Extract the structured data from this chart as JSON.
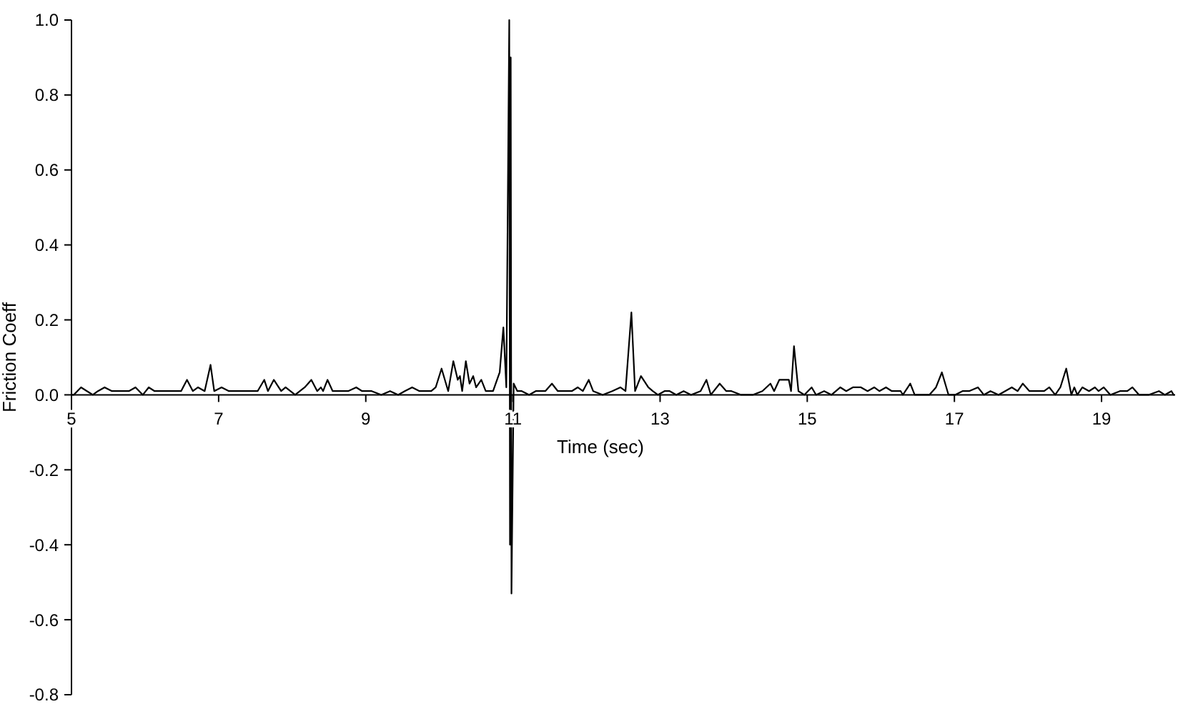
{
  "chart_data": {
    "type": "line",
    "xlabel": "Time (sec)",
    "ylabel": "Friction Coeff",
    "xlim": [
      5,
      20
    ],
    "xticks": [
      5,
      7,
      9,
      11,
      13,
      15,
      17,
      19
    ],
    "ylim": [
      -0.8,
      1.0
    ],
    "yticks": [
      {
        "value": 1,
        "label": "1.0"
      },
      0.8,
      0.6,
      0.4,
      0.2,
      {
        "value": 0,
        "label": "0.0"
      },
      -0.2,
      -0.4,
      -0.6,
      -0.8
    ],
    "x": [
      5.0,
      5.03,
      5.13,
      5.21,
      5.29,
      5.36,
      5.45,
      5.55,
      5.65,
      5.78,
      5.87,
      5.97,
      6.05,
      6.13,
      6.26,
      6.39,
      6.49,
      6.57,
      6.65,
      6.72,
      6.81,
      6.89,
      6.94,
      7.04,
      7.14,
      7.23,
      7.33,
      7.4,
      7.53,
      7.62,
      7.67,
      7.75,
      7.85,
      7.91,
      8.04,
      8.17,
      8.26,
      8.34,
      8.39,
      8.42,
      8.48,
      8.55,
      8.66,
      8.76,
      8.87,
      8.95,
      9.08,
      9.21,
      9.33,
      9.44,
      9.53,
      9.63,
      9.73,
      9.82,
      9.89,
      9.95,
      10.03,
      10.12,
      10.19,
      10.25,
      10.28,
      10.31,
      10.36,
      10.41,
      10.46,
      10.5,
      10.57,
      10.63,
      10.7,
      10.73,
      10.82,
      10.87,
      10.91,
      10.95,
      10.96,
      10.97,
      10.98,
      11.01,
      11.06,
      11.12,
      11.22,
      11.31,
      11.44,
      11.53,
      11.61,
      11.7,
      11.8,
      11.88,
      11.95,
      12.03,
      12.09,
      12.22,
      12.35,
      12.46,
      12.53,
      12.61,
      12.66,
      12.74,
      12.84,
      12.9,
      12.97,
      13.06,
      13.13,
      13.22,
      13.32,
      13.42,
      13.55,
      13.63,
      13.69,
      13.81,
      13.9,
      13.97,
      14.1,
      14.26,
      14.39,
      14.5,
      14.55,
      14.62,
      14.68,
      14.75,
      14.78,
      14.82,
      14.88,
      14.96,
      15.06,
      15.12,
      15.23,
      15.33,
      15.45,
      15.53,
      15.62,
      15.73,
      15.82,
      15.91,
      15.98,
      16.07,
      16.15,
      16.27,
      16.3,
      16.4,
      16.46,
      16.66,
      16.75,
      16.83,
      16.92,
      17.01,
      17.11,
      17.2,
      17.32,
      17.4,
      17.49,
      17.6,
      17.69,
      17.78,
      17.86,
      17.93,
      18.02,
      18.12,
      18.22,
      18.29,
      18.37,
      18.44,
      18.52,
      18.59,
      18.63,
      18.67,
      18.74,
      18.83,
      18.91,
      18.96,
      19.03,
      19.12,
      19.25,
      19.35,
      19.42,
      19.51,
      19.64,
      19.78,
      19.86,
      19.95,
      19.98
    ],
    "series": [
      {
        "color": "#000000",
        "values": [
          0.0,
          0.0,
          0.02,
          0.01,
          0.0,
          0.01,
          0.02,
          0.01,
          0.01,
          0.01,
          0.02,
          0.0,
          0.02,
          0.01,
          0.01,
          0.01,
          0.01,
          0.04,
          0.01,
          0.02,
          0.01,
          0.08,
          0.01,
          0.02,
          0.01,
          0.01,
          0.01,
          0.01,
          0.01,
          0.04,
          0.01,
          0.04,
          0.01,
          0.02,
          0.0,
          0.02,
          0.04,
          0.01,
          0.02,
          0.01,
          0.04,
          0.01,
          0.01,
          0.01,
          0.02,
          0.01,
          0.01,
          0.0,
          0.01,
          0.0,
          0.01,
          0.02,
          0.01,
          0.01,
          0.01,
          0.02,
          0.07,
          0.01,
          0.09,
          0.04,
          0.05,
          0.01,
          0.09,
          0.03,
          0.05,
          0.02,
          0.04,
          0.01,
          0.01,
          0.01,
          0.06,
          0.18,
          0.02,
          1.0,
          -0.4,
          0.9,
          -0.53,
          0.03,
          0.01,
          0.01,
          0.0,
          0.01,
          0.01,
          0.03,
          0.01,
          0.01,
          0.01,
          0.02,
          0.01,
          0.04,
          0.01,
          0.0,
          0.01,
          0.02,
          0.01,
          0.22,
          0.01,
          0.05,
          0.02,
          0.01,
          0.0,
          0.01,
          0.01,
          0.0,
          0.01,
          0.0,
          0.01,
          0.04,
          0.0,
          0.03,
          0.01,
          0.01,
          0.0,
          0.0,
          0.01,
          0.03,
          0.01,
          0.04,
          0.04,
          0.04,
          0.01,
          0.13,
          0.01,
          0.0,
          0.02,
          0.0,
          0.01,
          0.0,
          0.02,
          0.01,
          0.02,
          0.02,
          0.01,
          0.02,
          0.01,
          0.02,
          0.01,
          0.01,
          0.0,
          0.03,
          0.0,
          0.0,
          0.02,
          0.06,
          0.0,
          0.0,
          0.01,
          0.01,
          0.02,
          0.0,
          0.01,
          0.0,
          0.01,
          0.02,
          0.01,
          0.03,
          0.01,
          0.01,
          0.01,
          0.02,
          0.0,
          0.02,
          0.07,
          0.0,
          0.02,
          0.0,
          0.02,
          0.01,
          0.02,
          0.01,
          0.02,
          0.0,
          0.01,
          0.01,
          0.02,
          0.0,
          0.0,
          0.01,
          0.0,
          0.01,
          0.0
        ]
      }
    ]
  }
}
